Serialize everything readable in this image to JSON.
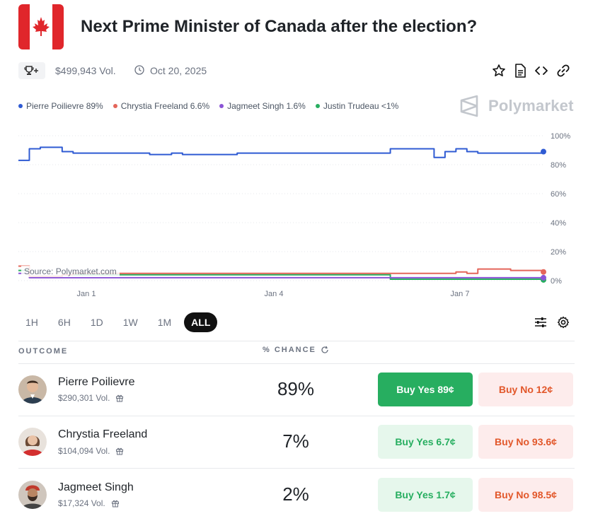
{
  "header": {
    "title": "Next Prime Minister of Canada after the election?",
    "volume": "$499,943 Vol.",
    "date": "Oct 20, 2025"
  },
  "legend": [
    {
      "label": "Pierre Poilievre 89%",
      "color": "#2f5bd3"
    },
    {
      "label": "Chrystia Freeland 6.6%",
      "color": "#e4655a"
    },
    {
      "label": "Jagmeet Singh 1.6%",
      "color": "#8b54d6"
    },
    {
      "label": "Justin Trudeau <1%",
      "color": "#27ae60"
    }
  ],
  "brand": "Polymarket",
  "source": "Source: Polymarket.com",
  "chart_data": {
    "type": "line",
    "x_ticks": [
      "Jan 1",
      "Jan 4",
      "Jan 7"
    ],
    "y_ticks": [
      "100%",
      "80%",
      "60%",
      "40%",
      "20%",
      "0%"
    ],
    "ylim": [
      0,
      100
    ],
    "series": [
      {
        "name": "Pierre Poilievre",
        "color": "#2f5bd3",
        "values": [
          83,
          91,
          92,
          92,
          89,
          88,
          88,
          88,
          88,
          88,
          88,
          88,
          87,
          87,
          88,
          87,
          87,
          87,
          87,
          87,
          88,
          88,
          88,
          88,
          88,
          88,
          88,
          88,
          88,
          88,
          88,
          88,
          88,
          88,
          91,
          91,
          91,
          91,
          85,
          89,
          91,
          89,
          88,
          88,
          88,
          88,
          88,
          88,
          89
        ]
      },
      {
        "name": "Chrystia Freeland",
        "color": "#e4655a",
        "values": [
          10,
          3,
          3,
          3,
          4,
          5,
          5,
          5,
          5,
          5,
          5,
          5,
          5,
          5,
          5,
          5,
          5,
          5,
          5,
          5,
          5,
          5,
          5,
          5,
          5,
          5,
          5,
          5,
          5,
          5,
          5,
          5,
          5,
          5,
          5,
          5,
          5,
          5,
          5,
          5,
          6,
          5,
          8,
          8,
          8,
          7,
          7,
          7,
          6
        ]
      },
      {
        "name": "Jagmeet Singh",
        "color": "#8b54d6",
        "values": [
          5,
          2,
          2,
          2,
          2,
          2,
          2,
          2,
          2,
          2,
          2,
          2,
          2,
          2,
          2,
          2,
          2,
          2,
          2,
          2,
          2,
          2,
          2,
          2,
          2,
          2,
          2,
          2,
          2,
          2,
          2,
          2,
          2,
          2,
          2,
          2,
          2,
          2,
          2,
          2,
          2,
          2,
          2,
          2,
          2,
          2,
          2,
          2,
          2
        ]
      },
      {
        "name": "Justin Trudeau",
        "color": "#27ae60",
        "values": [
          7,
          3,
          3,
          3,
          4,
          4,
          4,
          4,
          4,
          4,
          4,
          4,
          4,
          4,
          4,
          4,
          4,
          4,
          4,
          4,
          4,
          4,
          4,
          4,
          4,
          4,
          4,
          4,
          4,
          4,
          4,
          4,
          4,
          4,
          1,
          1,
          1,
          1,
          1,
          1,
          1,
          1,
          1,
          1,
          1,
          1,
          1,
          1,
          0.5
        ]
      }
    ]
  },
  "ranges": [
    "1H",
    "6H",
    "1D",
    "1W",
    "1M",
    "ALL"
  ],
  "active_range": "ALL",
  "table": {
    "col_outcome": "OUTCOME",
    "col_chance": "% CHANCE",
    "rows": [
      {
        "name": "Pierre Poilievre",
        "volume": "$290,301 Vol.",
        "chance": "89%",
        "yes": "Buy Yes 89¢",
        "no": "Buy No 12¢"
      },
      {
        "name": "Chrystia Freeland",
        "volume": "$104,094 Vol.",
        "chance": "7%",
        "yes": "Buy Yes 6.7¢",
        "no": "Buy No 93.6¢"
      },
      {
        "name": "Jagmeet Singh",
        "volume": "$17,324 Vol.",
        "chance": "2%",
        "yes": "Buy Yes 1.7¢",
        "no": "Buy No 98.5¢"
      }
    ]
  }
}
